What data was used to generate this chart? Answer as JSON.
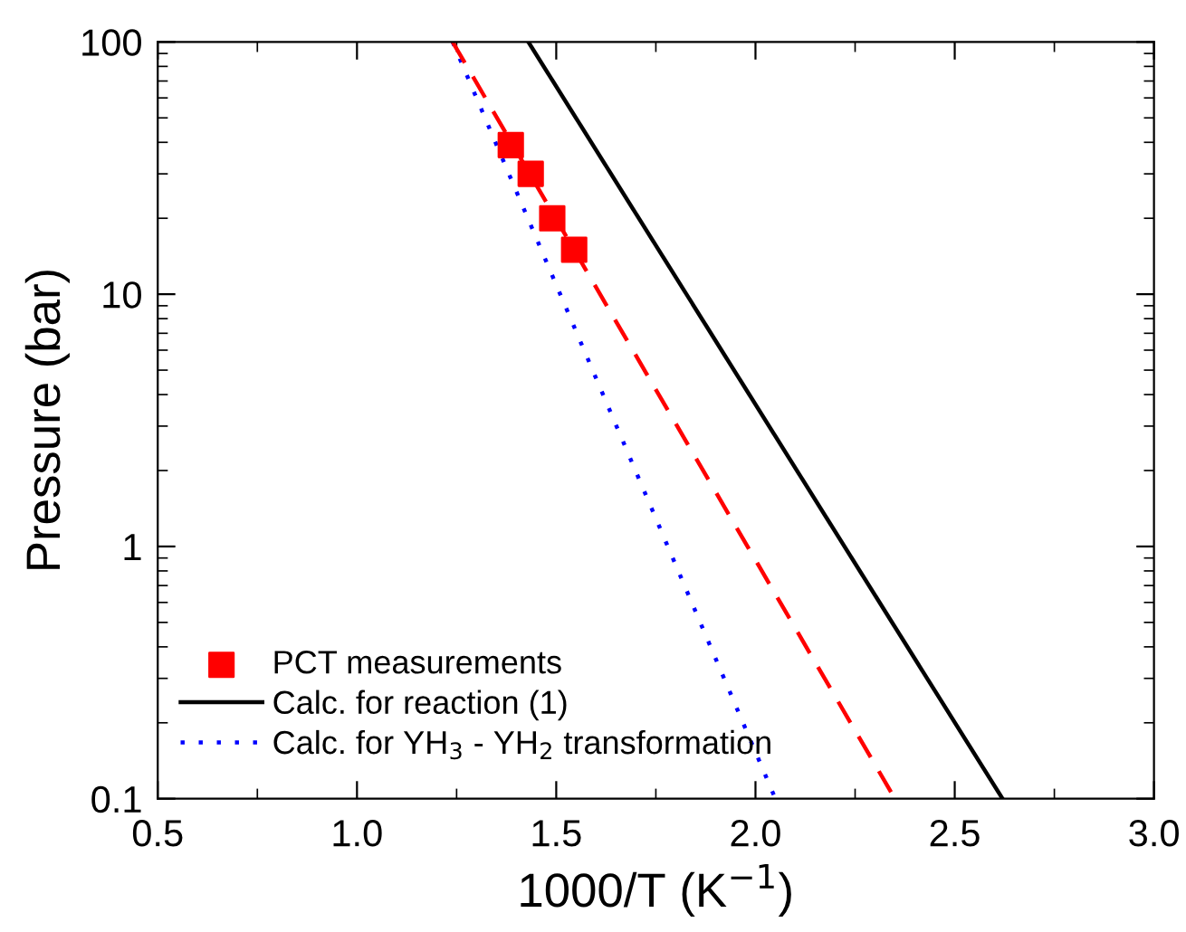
{
  "chart_data": {
    "type": "line",
    "xlabel": "1000/T (K$^{−1}$)",
    "ylabel": "Pressure (bar)",
    "log": "y",
    "xlim": [
      0.5,
      3.0
    ],
    "xticks": [
      {
        "value": 0.5,
        "label": "0.5"
      },
      {
        "value": 1.0,
        "label": "1.0"
      },
      {
        "value": 1.5,
        "label": "1.5"
      },
      {
        "value": 2.0,
        "label": "2.0"
      },
      {
        "value": 2.5,
        "label": "2.5"
      },
      {
        "value": 3.0,
        "label": "3.0"
      }
    ],
    "ylim": [
      0.1,
      100
    ],
    "yticks": [
      0.1,
      1,
      10,
      100
    ],
    "legend": "lower left",
    "grid": false,
    "series": [
      {
        "name": "PCT measurements",
        "type": "scatter",
        "marker": "square",
        "color": "#ff0000",
        "x": [
          1.386,
          1.436,
          1.49,
          1.545
        ],
        "values": [
          39,
          30,
          20,
          15
        ]
      },
      {
        "name": "Calc. for reaction (1)",
        "line_style": "solid",
        "color": "#000000",
        "x": [
          1.43,
          2.62
        ],
        "values": [
          100,
          0.1
        ]
      },
      {
        "name": "Calc. for YH$_{3}$ - YH$_{2}$ transformation",
        "line_style": "dotted",
        "color": "#0000ff",
        "x": [
          1.24,
          2.05
        ],
        "values": [
          100,
          0.1
        ]
      },
      {
        "line_style": "dashed",
        "color": "#ff0000",
        "x": [
          1.24,
          2.35
        ],
        "values": [
          100,
          0.1
        ]
      }
    ]
  }
}
